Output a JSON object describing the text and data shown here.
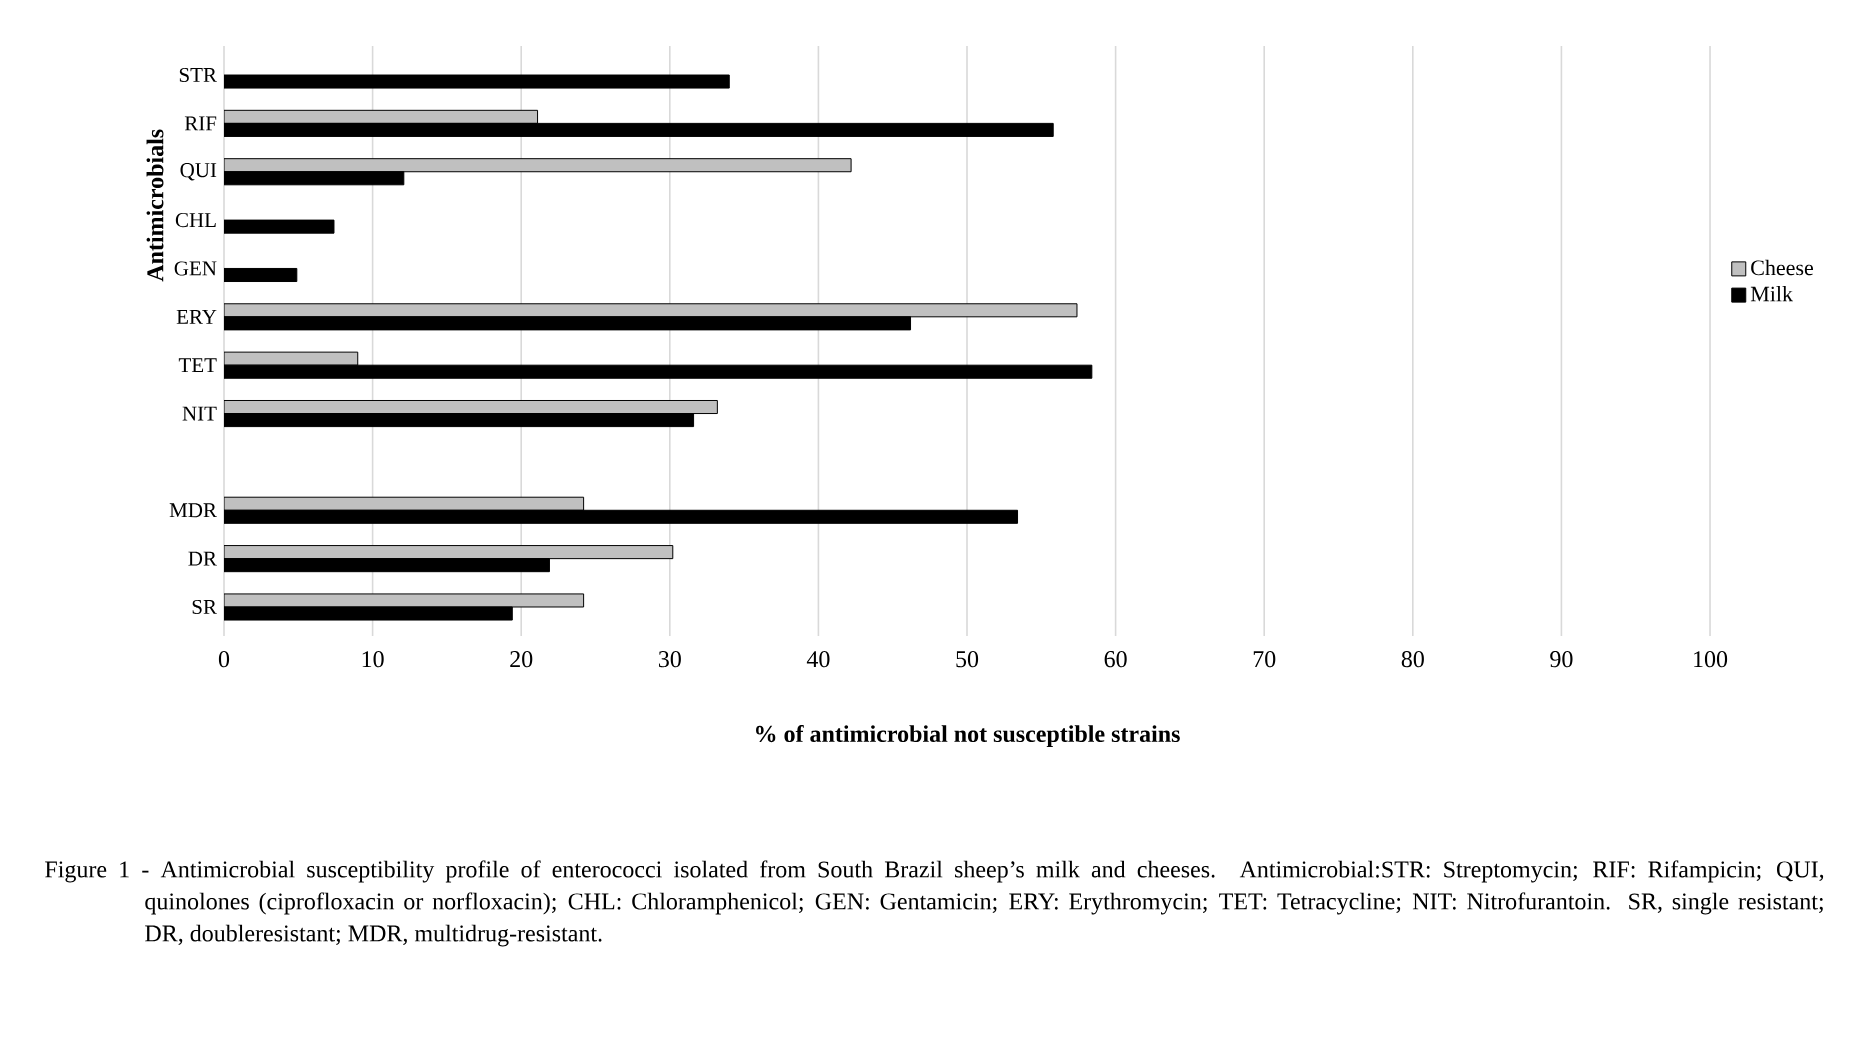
{
  "chart_data": {
    "type": "bar",
    "orientation": "horizontal",
    "categories": [
      "STR",
      "RIF",
      "QUI",
      "CHL",
      "GEN",
      "ERY",
      "TET",
      "NIT",
      null,
      "MDR",
      "DR",
      "SR"
    ],
    "series": [
      {
        "name": "Cheese",
        "color": "#c0c0c0",
        "values": [
          null,
          21.1,
          42.2,
          null,
          null,
          57.4,
          9.0,
          33.2,
          null,
          24.2,
          30.2,
          24.2
        ]
      },
      {
        "name": "Milk",
        "color": "#000000",
        "values": [
          34.0,
          55.8,
          12.1,
          7.4,
          4.9,
          46.2,
          58.4,
          31.6,
          null,
          53.4,
          21.9,
          19.4
        ]
      }
    ],
    "xlabel": "% of antimicrobial not susceptible strains",
    "ylabel": "Antimicrobials",
    "xlim": [
      0,
      100
    ],
    "xticks": [
      0,
      10,
      20,
      30,
      40,
      50,
      60,
      70,
      80,
      90,
      100
    ],
    "grid": "x",
    "legend": "right",
    "annotations": [
      "Figure 1 - Antimicrobial susceptibility profile of enterococci isolated from South Brazil sheep’s milk and cheeses. Antimicrobial:STR: Streptomycin; RIF: Rifampicin; QUI, quinolones (ciprofloxacin or norfloxacin); CHL: Chloramphenicol; GEN: Gentamicin; ERY: Erythromycin; TET: Tetracycline; NIT: Nitrofurantoin. SR, single resistant; DR, doubleresistant; MDR, multidrug-resistant."
    ]
  }
}
